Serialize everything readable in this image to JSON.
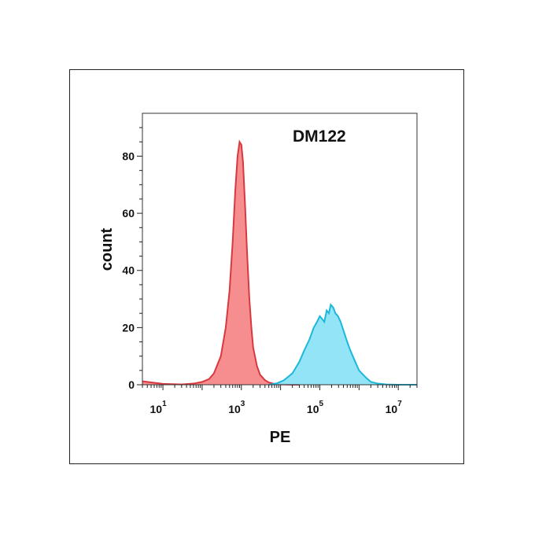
{
  "chart_data": {
    "type": "area",
    "title": "DM122",
    "xlabel": "PE",
    "ylabel": "count",
    "x_scale": "log",
    "xlim": [
      3,
      30000000
    ],
    "ylim": [
      0,
      95
    ],
    "x_ticks": [
      {
        "base": "10",
        "exp": "1",
        "value": 10
      },
      {
        "base": "10",
        "exp": "3",
        "value": 1000
      },
      {
        "base": "10",
        "exp": "5",
        "value": 100000
      },
      {
        "base": "10",
        "exp": "7",
        "value": 10000000
      }
    ],
    "y_ticks": [
      0,
      20,
      40,
      60,
      80
    ],
    "grid": false,
    "series": [
      {
        "color": "#f4797b",
        "stroke": "#d8393f",
        "x": [
          3,
          10,
          30,
          60,
          100,
          150,
          200,
          300,
          400,
          500,
          600,
          700,
          800,
          900,
          1000,
          1100,
          1250,
          1400,
          1600,
          1800,
          2000,
          2500,
          3000,
          4000,
          5000,
          7000,
          10000,
          20000,
          30000
        ],
        "values": [
          1.2,
          0.3,
          0.1,
          0.4,
          1,
          2,
          4,
          10,
          20,
          33,
          50,
          68,
          80,
          85,
          84,
          78,
          62,
          46,
          30,
          20,
          13,
          6.5,
          3.5,
          1.6,
          0.8,
          0.3,
          0.1,
          0,
          0
        ]
      },
      {
        "color": "#7fdff5",
        "stroke": "#1bb8dc",
        "x": [
          5000,
          8000,
          12000,
          20000,
          30000,
          40000,
          55000,
          70000,
          85000,
          100000,
          115000,
          130000,
          150000,
          170000,
          190000,
          220000,
          250000,
          290000,
          340000,
          400000,
          500000,
          600000,
          800000,
          1000000,
          1500000,
          2000000,
          3000000,
          5000000,
          10000000,
          30000000
        ],
        "values": [
          0,
          0.5,
          1.5,
          4,
          8,
          12,
          16,
          20,
          22,
          24,
          23,
          22,
          26,
          25,
          28,
          27,
          25,
          24,
          22,
          19,
          15,
          12,
          8,
          5,
          2.5,
          1,
          0.4,
          0.1,
          0,
          0
        ]
      }
    ]
  }
}
